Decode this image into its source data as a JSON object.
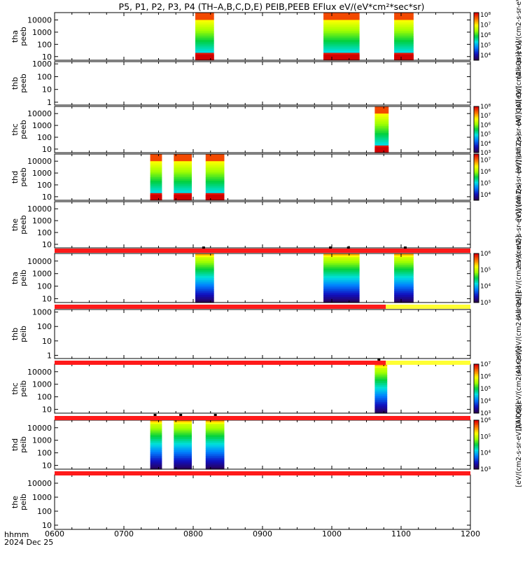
{
  "title": "P5, P1, P2, P3, P4 (TH–A,B,C,D,E) PEIB,PEEB EFlux eV/(eV*cm²*sec*sr)",
  "time_axis": {
    "label_top": "hhmm",
    "label_bottom": "2024 Dec 25",
    "ticks": [
      "0600",
      "0700",
      "0800",
      "0900",
      "1000",
      "1100",
      "1200"
    ]
  },
  "colors": {
    "data_bar": "#ff1a1a",
    "data_bar_alt": "#ffff33",
    "axis": "#000000"
  },
  "colorbar_labels": {
    "peeb_a": "(All Qs)] eV/(cm2-s-sr-eV)",
    "peeb_b": "(All Qs)[eV/(cm2-s-sr-eV)]",
    "peeb_c": "[eV/(cm2-s-sr-eV)] (All Qs)",
    "peeb_d": "[eV/(cm2-s-sr-eV)] (All Qs)",
    "peeb_e": "eV/(cm2-s-sr-eV)] (All Qs)",
    "peib_a": "(All Qs)[eV/(cm2-s-sr-eV)]",
    "peib_b": "(All Qs)[eV/(cm2-s-sr-eV)]",
    "peib_c": "(All Qs)[eV/(cm2-s-sr-eV)]",
    "peib_d": "[eV/(cm2-s-sr-eV)](All Qs)"
  },
  "chart_data": {
    "type": "heatmap",
    "x_range_hours": [
      6,
      12
    ],
    "panels": [
      {
        "id": "tha_peeb",
        "ylabel": [
          "tha",
          "peeb"
        ],
        "yticks": [
          "10",
          "100",
          "1000",
          "10000"
        ],
        "ylog": [
          5,
          40000
        ],
        "cbar": [
          "10⁴",
          "10⁵",
          "10⁶",
          "10⁷",
          "10⁸"
        ],
        "cbar_log": [
          3.5,
          8.2
        ],
        "blocks": [
          [
            8.03,
            8.3
          ],
          [
            9.88,
            10.4
          ],
          [
            10.9,
            11.18
          ]
        ],
        "bar": null
      },
      {
        "id": "thb_peeb",
        "ylabel": [
          "thb",
          "peeb"
        ],
        "yticks": [
          "1",
          "10",
          "100",
          "1000"
        ],
        "ylog": [
          0.6,
          1500
        ],
        "cbar": null,
        "blocks": [],
        "bar": null
      },
      {
        "id": "thc_peeb",
        "ylabel": [
          "thc",
          "peeb"
        ],
        "yticks": [
          "10",
          "100",
          "1000",
          "10000"
        ],
        "ylog": [
          5,
          40000
        ],
        "cbar": [
          "10³",
          "10⁴",
          "10⁵",
          "10⁶",
          "10⁷",
          "10⁸"
        ],
        "cbar_log": [
          3,
          8
        ],
        "blocks": [
          [
            10.62,
            10.82
          ]
        ],
        "bar": null
      },
      {
        "id": "thd_peeb",
        "ylabel": [
          "thd",
          "peeb"
        ],
        "yticks": [
          "10",
          "100",
          "1000",
          "10000"
        ],
        "ylog": [
          5,
          40000
        ],
        "cbar": [
          "10⁴",
          "10⁵",
          "10⁶",
          "10⁷"
        ],
        "cbar_log": [
          3.5,
          7.5
        ],
        "blocks": [
          [
            7.38,
            7.55
          ],
          [
            7.72,
            7.98
          ],
          [
            8.18,
            8.45
          ]
        ],
        "bar": null
      },
      {
        "id": "the_peeb",
        "ylabel": [
          "the",
          "peeb"
        ],
        "yticks": [
          "10",
          "100",
          "1000",
          "10000"
        ],
        "ylog": [
          5,
          40000
        ],
        "cbar": null,
        "blocks": [],
        "bar": {
          "segments": [
            [
              6,
              12,
              "red"
            ]
          ],
          "ticks": [
            8.15,
            9.98,
            10.24,
            11.06
          ]
        }
      },
      {
        "id": "tha_peib",
        "ylabel": [
          "tha",
          "peib"
        ],
        "yticks": [
          "10",
          "100",
          "1000",
          "10000"
        ],
        "ylog": [
          5,
          40000
        ],
        "cbar": [
          "10³",
          "10⁴",
          "10⁵",
          "10⁶"
        ],
        "cbar_log": [
          3,
          6
        ],
        "blocks": [
          [
            8.03,
            8.3
          ],
          [
            9.88,
            10.4
          ],
          [
            10.9,
            11.18
          ]
        ],
        "bar": {
          "segments": [
            [
              6,
              10.78,
              "red"
            ],
            [
              10.78,
              12,
              "yellow"
            ]
          ],
          "ticks": []
        }
      },
      {
        "id": "thb_peib",
        "ylabel": [
          "thb",
          "peib"
        ],
        "yticks": [
          "1",
          "10",
          "100",
          "1000"
        ],
        "ylog": [
          0.6,
          1500
        ],
        "cbar": null,
        "blocks": [],
        "bar": {
          "segments": [
            [
              6,
              10.78,
              "red"
            ],
            [
              10.78,
              12,
              "yellow"
            ]
          ],
          "ticks": [
            10.68
          ]
        }
      },
      {
        "id": "thc_peib",
        "ylabel": [
          "thc",
          "peib"
        ],
        "yticks": [
          "10",
          "100",
          "1000",
          "10000"
        ],
        "ylog": [
          5,
          40000
        ],
        "cbar": [
          "10³",
          "10⁴",
          "10⁵",
          "10⁶",
          "10⁷"
        ],
        "cbar_log": [
          3,
          7
        ],
        "blocks": [
          [
            10.62,
            10.8
          ]
        ],
        "bar": {
          "segments": [
            [
              6,
              12,
              "red"
            ]
          ],
          "ticks": [
            7.45,
            7.82,
            8.32
          ]
        }
      },
      {
        "id": "thd_peib",
        "ylabel": [
          "thd",
          "peib"
        ],
        "yticks": [
          "10",
          "100",
          "1000",
          "10000"
        ],
        "ylog": [
          5,
          40000
        ],
        "cbar": [
          "10³",
          "10⁴",
          "10⁵",
          "10⁶"
        ],
        "cbar_log": [
          3,
          6
        ],
        "blocks": [
          [
            7.38,
            7.55
          ],
          [
            7.72,
            7.98
          ],
          [
            8.18,
            8.45
          ]
        ],
        "bar": {
          "segments": [
            [
              6,
              12,
              "red"
            ]
          ],
          "ticks": []
        }
      },
      {
        "id": "the_peib",
        "ylabel": [
          "the",
          "peib"
        ],
        "yticks": [
          "10",
          "100",
          "1000",
          "10000"
        ],
        "ylog": [
          5,
          40000
        ],
        "cbar": null,
        "blocks": [],
        "bar": null
      }
    ]
  }
}
